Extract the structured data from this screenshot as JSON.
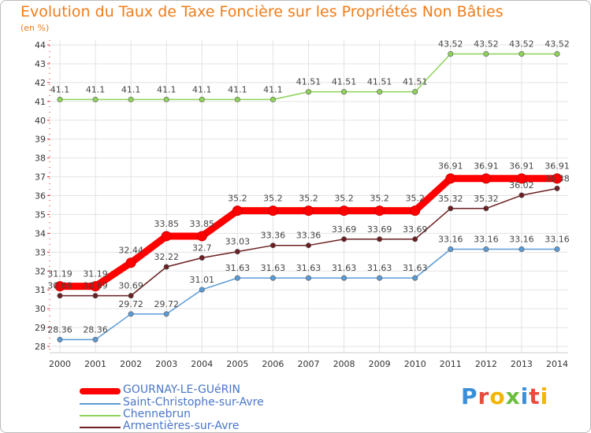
{
  "chart_data": {
    "type": "line",
    "title": "Evolution du Taux de Taxe Foncière sur les Propriétés Non Bâties",
    "ylabel": "(en %)",
    "xlabel": "",
    "categories": [
      "2000",
      "2001",
      "2002",
      "2003",
      "2004",
      "2005",
      "2006",
      "2007",
      "2008",
      "2009",
      "2010",
      "2011",
      "2012",
      "2013",
      "2014"
    ],
    "y_ticks": [
      "28",
      "29",
      "30",
      "31",
      "32",
      "33",
      "34",
      "35",
      "36",
      "37",
      "38",
      "39",
      "40",
      "41",
      "42",
      "43",
      "44"
    ],
    "ylim": [
      28,
      44
    ],
    "grid": true,
    "series": [
      {
        "name": "GOURNAY-LE-GUéRIN",
        "color": "#ff0000",
        "values": [
          31.19,
          31.19,
          32.44,
          33.85,
          33.85,
          35.2,
          35.2,
          35.2,
          35.2,
          35.2,
          35.2,
          36.91,
          36.91,
          36.91,
          36.91
        ],
        "labels": [
          "31.19",
          "31.19",
          "32.44",
          "33.85",
          "33.85",
          "35.2",
          "35.2",
          "35.2",
          "35.2",
          "35.2",
          "35.2",
          "36.91",
          "36.91",
          "36.91",
          "36.91"
        ]
      },
      {
        "name": "Saint-Christophe-sur-Avre",
        "color": "#5b9bd5",
        "values": [
          28.36,
          28.36,
          29.72,
          29.72,
          31.01,
          31.63,
          31.63,
          31.63,
          31.63,
          31.63,
          31.63,
          33.16,
          33.16,
          33.16,
          33.16
        ],
        "labels": [
          "28.36",
          "28.36",
          "29.72",
          "29.72",
          "31.01",
          "31.63",
          "31.63",
          "31.63",
          "31.63",
          "31.63",
          "31.63",
          "33.16",
          "33.16",
          "33.16",
          "33.16"
        ]
      },
      {
        "name": "Chennebrun",
        "color": "#8ed35a",
        "values": [
          41.1,
          41.1,
          41.1,
          41.1,
          41.1,
          41.1,
          41.1,
          41.51,
          41.51,
          41.51,
          41.51,
          43.52,
          43.52,
          43.52,
          43.52
        ],
        "labels": [
          "41.1",
          "41.1",
          "41.1",
          "41.1",
          "41.1",
          "41.1",
          "41.1",
          "41.51",
          "41.51",
          "41.51",
          "41.51",
          "43.52",
          "43.52",
          "43.52",
          "43.52"
        ]
      },
      {
        "name": "Armentières-sur-Avre",
        "color": "#6b1f22",
        "values": [
          30.69,
          30.69,
          30.69,
          32.22,
          32.7,
          33.03,
          33.36,
          33.36,
          33.69,
          33.69,
          33.69,
          35.32,
          35.32,
          36.02,
          36.38
        ],
        "labels": [
          "30.69",
          "30.69",
          "30.69",
          "32.22",
          "32.7",
          "33.03",
          "33.36",
          "33.36",
          "33.69",
          "33.69",
          "33.69",
          "35.32",
          "35.32",
          "36.02",
          "36.38"
        ]
      }
    ],
    "legend_position": "bottom-left"
  },
  "logo": {
    "text": "Proxiti",
    "letters": [
      "P",
      "r",
      "o",
      "x",
      "i",
      "t",
      "i"
    ],
    "colors": [
      "#3b8fd8",
      "#e84c3d",
      "#f2b600",
      "#6abf3c",
      "#3b8fd8",
      "#e84c3d",
      "#f2b600"
    ]
  }
}
